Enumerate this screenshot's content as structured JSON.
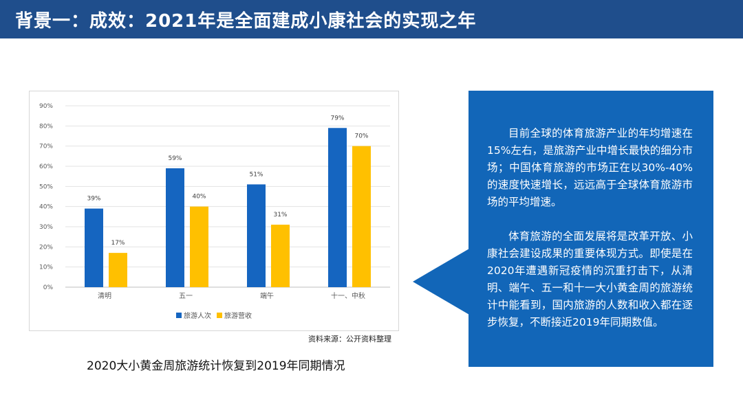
{
  "header": {
    "title": "背景一：成效：2021年是全面建成小康社会的实现之年"
  },
  "colors": {
    "header_bg": "#1f4e8c",
    "callout_bg": "#1266b8",
    "series_visitors": "#1565c0",
    "series_revenue": "#ffc000"
  },
  "chart_data": {
    "type": "bar",
    "categories": [
      "清明",
      "五一",
      "端午",
      "十一、中秋"
    ],
    "series": [
      {
        "name": "旅游人次",
        "values": [
          39,
          59,
          51,
          79
        ],
        "labels": [
          "39%",
          "59%",
          "51%",
          "79%"
        ]
      },
      {
        "name": "旅游营收",
        "values": [
          17,
          40,
          31,
          70
        ],
        "labels": [
          "17%",
          "40%",
          "31%",
          "70%"
        ]
      }
    ],
    "y_ticks": [
      "0%",
      "10%",
      "20%",
      "30%",
      "40%",
      "50%",
      "60%",
      "70%",
      "80%",
      "90%"
    ],
    "ylim": [
      0,
      90
    ],
    "grid": true,
    "legend_position": "bottom"
  },
  "chart": {
    "source": "资料来源：公开资料整理",
    "caption": "2020大小黄金周旅游统计恢复到2019年同期情况"
  },
  "callout": {
    "paragraphs": [
      "目前全球的体育旅游产业的年均增速在15%左右，是旅游产业中增长最快的细分市场；中国体育旅游的市场正在以30%-40%的速度快速增长，远远高于全球体育旅游市场的平均增速。",
      "体育旅游的全面发展将是改革开放、小康社会建设成果的重要体现方式。即使是在2020年遭遇新冠疫情的沉重打击下，从清明、端午、五一和十一大小黄金周的旅游统计中能看到，国内旅游的人数和收入都在逐步恢复，不断接近2019年同期数值。"
    ]
  }
}
